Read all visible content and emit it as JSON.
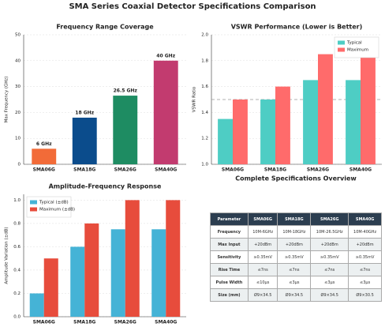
{
  "title": "SMA Series Coaxial Detector Specifications Comparison",
  "chart_data": [
    {
      "type": "bar",
      "title": "Frequency Range Coverage",
      "ylabel": "Max Frequency (GHz)",
      "categories": [
        "SMA06G",
        "SMA18G",
        "SMA26G",
        "SMA40G"
      ],
      "values": [
        6,
        18,
        26.5,
        40
      ],
      "value_labels": [
        "6 GHz",
        "18 GHz",
        "26.5 GHz",
        "40 GHz"
      ],
      "colors": [
        "#f26b38",
        "#0b4c8c",
        "#1e8c62",
        "#c23b6f"
      ],
      "ylim": [
        0,
        50
      ],
      "yticks": [
        0,
        10,
        20,
        30,
        40,
        50
      ],
      "grid": true
    },
    {
      "type": "grouped_bar",
      "title": "VSWR Performance (Lower is Better)",
      "ylabel": "VSWR Ratio",
      "categories": [
        "SMA06G",
        "SMA18G",
        "SMA26G",
        "SMA40G"
      ],
      "series": [
        {
          "name": "Typical",
          "color": "#4ecdc4",
          "values": [
            1.35,
            1.5,
            1.65,
            1.65
          ]
        },
        {
          "name": "Maximum",
          "color": "#ff6b6b",
          "values": [
            1.5,
            1.6,
            1.85,
            1.85
          ]
        }
      ],
      "ylim": [
        1.0,
        2.0
      ],
      "yticks": [
        {
          "value": 1.0,
          "label": "1.0"
        },
        1.2,
        1.4,
        1.6,
        1.8,
        {
          "value": 2.0,
          "label": "2.0"
        }
      ],
      "reference_line": 1.5,
      "legend": "upper right",
      "grid": true
    },
    {
      "type": "grouped_bar",
      "title": "Amplitude-Frequency Response",
      "ylabel": "Amplitude Variation (±dB)",
      "categories": [
        "SMA06G",
        "SMA18G",
        "SMA26G",
        "SMA40G"
      ],
      "series": [
        {
          "name": "Typical (±dB)",
          "color": "#45b3d6",
          "values": [
            0.2,
            0.6,
            0.75,
            0.75
          ]
        },
        {
          "name": "Maximum (±dB)",
          "color": "#e74c3c",
          "values": [
            0.5,
            0.8,
            1.0,
            1.0
          ]
        }
      ],
      "ylim": [
        0,
        1.05
      ],
      "yticks": [
        {
          "value": 0,
          "label": "0.0"
        },
        0.2,
        0.4,
        0.6,
        0.8,
        {
          "value": 1.0,
          "label": "1.0"
        }
      ],
      "legend": "upper left",
      "grid": true
    }
  ],
  "table": {
    "title": "Complete Specifications Overview",
    "header": [
      "Parameter",
      "SMA06G",
      "SMA18G",
      "SMA26G",
      "SMA40G"
    ],
    "rows": [
      [
        "Frequency",
        "10M-6GHz",
        "10M-18GHz",
        "10M-26.5GHz",
        "10M-40GHz"
      ],
      [
        "Max Input",
        "+20dBm",
        "+20dBm",
        "+20dBm",
        "+20dBm"
      ],
      [
        "Sensitivity",
        "≥0.35mV",
        "≥0.35mV",
        "≥0.35mV",
        "≥0.35mV"
      ],
      [
        "Rise Time",
        "≤7ns",
        "≤7ns",
        "≤7ns",
        "≤7ns"
      ],
      [
        "Pulse Width",
        "≤10μs",
        "≤3μs",
        "≤3μs",
        "≤3μs"
      ],
      [
        "Size (mm)",
        "Ø9×34.5",
        "Ø9×34.5",
        "Ø9×34.5",
        "Ø9×30.5"
      ]
    ]
  }
}
